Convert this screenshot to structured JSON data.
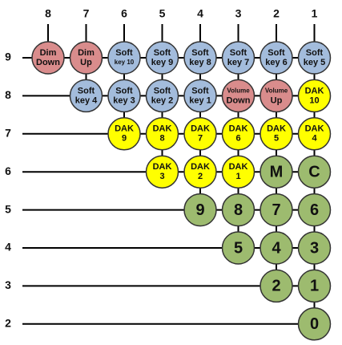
{
  "columns": [
    "8",
    "7",
    "6",
    "5",
    "4",
    "3",
    "2",
    "1"
  ],
  "rows": [
    {
      "label": "9",
      "nodes": [
        {
          "lines": [
            "Dim",
            "Down"
          ],
          "color": "#d98c8c"
        },
        {
          "lines": [
            "Dim",
            "Up"
          ],
          "color": "#d98c8c"
        },
        {
          "lines": [
            "Soft",
            "key 10"
          ],
          "color": "#a3bcdc"
        },
        {
          "lines": [
            "Soft",
            "key 9"
          ],
          "color": "#a3bcdc"
        },
        {
          "lines": [
            "Soft",
            "key 8"
          ],
          "color": "#a3bcdc"
        },
        {
          "lines": [
            "Soft",
            "key 7"
          ],
          "color": "#a3bcdc"
        },
        {
          "lines": [
            "Soft",
            "key 6"
          ],
          "color": "#a3bcdc"
        },
        {
          "lines": [
            "Soft",
            "key 5"
          ],
          "color": "#a3bcdc"
        }
      ]
    },
    {
      "label": "8",
      "nodes": [
        {
          "lines": [
            "Soft",
            "key 4"
          ],
          "color": "#a3bcdc"
        },
        {
          "lines": [
            "Soft",
            "key 3"
          ],
          "color": "#a3bcdc"
        },
        {
          "lines": [
            "Soft",
            "key 2"
          ],
          "color": "#a3bcdc"
        },
        {
          "lines": [
            "Soft",
            "key 1"
          ],
          "color": "#a3bcdc"
        },
        {
          "lines": [
            "Volume",
            "Down"
          ],
          "color": "#d98c8c"
        },
        {
          "lines": [
            "Volume",
            "Up"
          ],
          "color": "#d98c8c"
        },
        {
          "lines": [
            "DAK",
            "10"
          ],
          "color": "#ffff00"
        }
      ]
    },
    {
      "label": "7",
      "nodes": [
        {
          "lines": [
            "DAK",
            "9"
          ],
          "color": "#ffff00"
        },
        {
          "lines": [
            "DAK",
            "8"
          ],
          "color": "#ffff00"
        },
        {
          "lines": [
            "DAK",
            "7"
          ],
          "color": "#ffff00"
        },
        {
          "lines": [
            "DAK",
            "6"
          ],
          "color": "#ffff00"
        },
        {
          "lines": [
            "DAK",
            "5"
          ],
          "color": "#ffff00"
        },
        {
          "lines": [
            "DAK",
            "4"
          ],
          "color": "#ffff00"
        }
      ]
    },
    {
      "label": "6",
      "nodes": [
        {
          "lines": [
            "DAK",
            "3"
          ],
          "color": "#ffff00"
        },
        {
          "lines": [
            "DAK",
            "2"
          ],
          "color": "#ffff00"
        },
        {
          "lines": [
            "DAK",
            "1"
          ],
          "color": "#ffff00"
        },
        {
          "lines": [
            "M"
          ],
          "color": "#9dbb6f"
        },
        {
          "lines": [
            "C"
          ],
          "color": "#9dbb6f"
        }
      ]
    },
    {
      "label": "5",
      "nodes": [
        {
          "lines": [
            "9"
          ],
          "color": "#9dbb6f"
        },
        {
          "lines": [
            "8"
          ],
          "color": "#9dbb6f"
        },
        {
          "lines": [
            "7"
          ],
          "color": "#9dbb6f"
        },
        {
          "lines": [
            "6"
          ],
          "color": "#9dbb6f"
        }
      ]
    },
    {
      "label": "4",
      "nodes": [
        {
          "lines": [
            "5"
          ],
          "color": "#9dbb6f"
        },
        {
          "lines": [
            "4"
          ],
          "color": "#9dbb6f"
        },
        {
          "lines": [
            "3"
          ],
          "color": "#9dbb6f"
        }
      ]
    },
    {
      "label": "3",
      "nodes": [
        {
          "lines": [
            "2"
          ],
          "color": "#9dbb6f"
        },
        {
          "lines": [
            "1"
          ],
          "color": "#9dbb6f"
        }
      ]
    },
    {
      "label": "2",
      "nodes": [
        {
          "lines": [
            "0"
          ],
          "color": "#9dbb6f"
        }
      ]
    }
  ]
}
